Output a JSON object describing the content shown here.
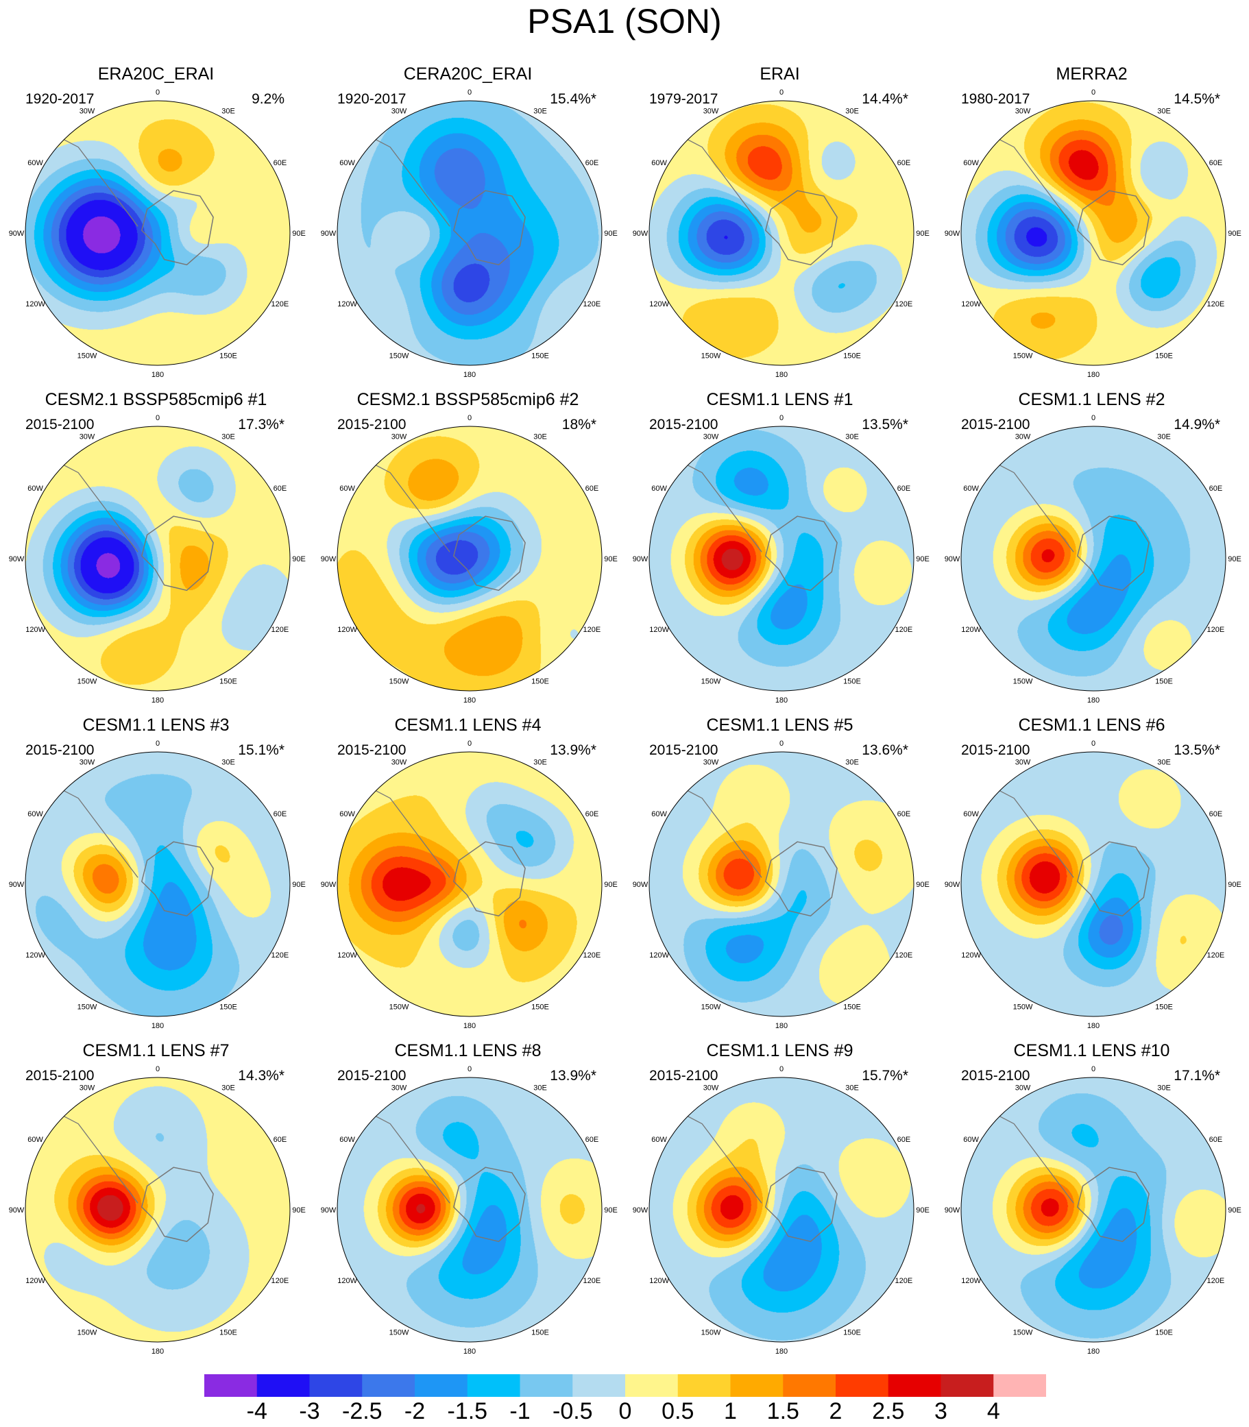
{
  "title": "PSA1 (SON)",
  "lon_labels": [
    "0",
    "30E",
    "60E",
    "90E",
    "120E",
    "150E",
    "180",
    "150W",
    "120W",
    "90W",
    "60W",
    "30W"
  ],
  "colorbar": {
    "colors": [
      "#8a2be2",
      "#1f0ff5",
      "#2e46e6",
      "#3c78eb",
      "#1e96f5",
      "#00c0fa",
      "#78c8f0",
      "#b4dcf0",
      "#fff58c",
      "#ffd22d",
      "#ffaa00",
      "#ff7800",
      "#ff3c00",
      "#e60000",
      "#c81e1e",
      "#ffb4b4"
    ],
    "labels": [
      "-4",
      "-3",
      "-2.5",
      "-2",
      "-1.5",
      "-1",
      "-0.5",
      "0",
      "0.5",
      "1",
      "1.5",
      "2",
      "2.5",
      "3",
      "4"
    ]
  },
  "panels": [
    {
      "title": "ERA20C_ERAI",
      "period": "1920-2017",
      "percent": "9.2%",
      "blobs": [
        [
          0.0,
          0.0,
          0.95,
          0.6
        ],
        [
          -0.42,
          0.01,
          0.32,
          -5
        ],
        [
          0.35,
          0.28,
          0.22,
          -1.3
        ],
        [
          0.25,
          -0.2,
          0.2,
          -0.8
        ],
        [
          0.05,
          -0.45,
          0.2,
          1.2
        ],
        [
          0.3,
          0.0,
          0.15,
          1.0
        ]
      ]
    },
    {
      "title": "CERA20C_ERAI",
      "period": "1920-2017",
      "percent": "15.4%*",
      "blobs": [
        [
          0.0,
          0.0,
          0.85,
          -0.8
        ],
        [
          -0.1,
          -0.5,
          0.25,
          -1.6
        ],
        [
          0.2,
          0.2,
          0.35,
          -1.2
        ],
        [
          -0.05,
          0.45,
          0.2,
          -1.3
        ],
        [
          -0.4,
          0.0,
          0.15,
          1.0
        ],
        [
          0.7,
          0.55,
          0.2,
          0.6
        ],
        [
          -0.5,
          0.5,
          0.2,
          0.3
        ]
      ]
    },
    {
      "title": "ERAI",
      "period": "1979-2017",
      "percent": "14.4%*",
      "blobs": [
        [
          0.0,
          0.0,
          0.95,
          0.5
        ],
        [
          -0.38,
          0.05,
          0.28,
          -4
        ],
        [
          -0.15,
          -0.5,
          0.22,
          2.2
        ],
        [
          0.1,
          0.05,
          0.28,
          1.3
        ],
        [
          0.35,
          0.38,
          0.22,
          -1.5
        ],
        [
          -0.4,
          0.5,
          0.25,
          1.2
        ],
        [
          0.35,
          -0.5,
          0.18,
          -0.8
        ],
        [
          0.65,
          0.3,
          0.2,
          -0.6
        ]
      ]
    },
    {
      "title": "MERRA2",
      "period": "1980-2017",
      "percent": "14.5%*",
      "blobs": [
        [
          0.0,
          0.0,
          0.95,
          0.5
        ],
        [
          -0.4,
          0.05,
          0.28,
          -4
        ],
        [
          -0.1,
          -0.5,
          0.22,
          2.6
        ],
        [
          0.15,
          0.0,
          0.25,
          1.3
        ],
        [
          0.45,
          0.35,
          0.2,
          -1.8
        ],
        [
          -0.4,
          0.5,
          0.25,
          1.3
        ],
        [
          0.45,
          -0.45,
          0.18,
          -1.0
        ],
        [
          0.65,
          0.1,
          0.2,
          -0.7
        ]
      ]
    },
    {
      "title": "CESM2.1 BSSP585cmip6 #1",
      "period": "2015-2100",
      "percent": "17.3%*",
      "blobs": [
        [
          0.0,
          0.0,
          0.95,
          0.6
        ],
        [
          -0.35,
          0.05,
          0.28,
          -5
        ],
        [
          0.25,
          -0.5,
          0.22,
          -1.4
        ],
        [
          0.2,
          0.1,
          0.25,
          1.5
        ],
        [
          0.6,
          0.3,
          0.3,
          -0.9
        ],
        [
          -0.2,
          0.6,
          0.2,
          0.8
        ],
        [
          0.0,
          -0.3,
          0.2,
          0.9
        ]
      ]
    },
    {
      "title": "CESM2.1 BSSP585cmip6 #2",
      "period": "2015-2100",
      "percent": "18%*",
      "blobs": [
        [
          0.0,
          0.0,
          0.95,
          0.6
        ],
        [
          -0.2,
          0.05,
          0.3,
          -3.5
        ],
        [
          0.1,
          -0.05,
          0.3,
          -1.3
        ],
        [
          0.1,
          0.5,
          0.3,
          1.5
        ],
        [
          -0.25,
          -0.5,
          0.2,
          1.6
        ],
        [
          -0.5,
          0.2,
          0.3,
          1.2
        ],
        [
          0.7,
          0.55,
          0.2,
          -0.5
        ]
      ]
    },
    {
      "title": "CESM1.1 LENS #1",
      "period": "2015-2100",
      "percent": "13.5%*",
      "blobs": [
        [
          0.0,
          0.0,
          0.95,
          -0.5
        ],
        [
          -0.35,
          0.0,
          0.22,
          4
        ],
        [
          -0.25,
          -0.55,
          0.22,
          -1.4
        ],
        [
          0.1,
          0.0,
          0.25,
          -0.9
        ],
        [
          0.0,
          0.4,
          0.2,
          -1.3
        ],
        [
          0.7,
          0.1,
          0.2,
          0.8
        ],
        [
          0.45,
          -0.5,
          0.15,
          0.8
        ]
      ]
    },
    {
      "title": "CESM1.1 LENS #2",
      "period": "2015-2100",
      "percent": "14.9%*",
      "blobs": [
        [
          0.0,
          0.0,
          0.95,
          -0.55
        ],
        [
          -0.3,
          0.0,
          0.22,
          4
        ],
        [
          0.05,
          0.0,
          0.3,
          -1.2
        ],
        [
          -0.1,
          0.35,
          0.25,
          -1.4
        ],
        [
          0.5,
          0.6,
          0.2,
          0.7
        ]
      ]
    },
    {
      "title": "CESM1.1 LENS #3",
      "period": "2015-2100",
      "percent": "15.1%*",
      "blobs": [
        [
          0.0,
          0.0,
          0.95,
          -0.7
        ],
        [
          -0.4,
          0.0,
          0.22,
          3.8
        ],
        [
          0.05,
          0.0,
          0.3,
          -1.3
        ],
        [
          -0.55,
          0.1,
          0.2,
          -1.4
        ],
        [
          0.4,
          -0.25,
          0.2,
          1.3
        ],
        [
          0.6,
          0.1,
          0.25,
          0.8
        ],
        [
          0.1,
          0.5,
          0.25,
          -1.0
        ]
      ]
    },
    {
      "title": "CESM1.1 LENS #4",
      "period": "2015-2100",
      "percent": "13.9%*",
      "blobs": [
        [
          0.0,
          0.0,
          0.95,
          0.7
        ],
        [
          0.0,
          0.35,
          0.2,
          -1.6
        ],
        [
          -0.55,
          0.0,
          0.22,
          2.2
        ],
        [
          0.45,
          -0.3,
          0.22,
          -1.5
        ],
        [
          0.15,
          -0.55,
          0.2,
          -0.8
        ],
        [
          0.35,
          0.3,
          0.18,
          1.2
        ],
        [
          -0.2,
          0.0,
          0.15,
          1.0
        ]
      ]
    },
    {
      "title": "CESM1.1 LENS #5",
      "period": "2015-2100",
      "percent": "13.6%*",
      "blobs": [
        [
          0.0,
          0.0,
          0.95,
          -0.3
        ],
        [
          -0.3,
          -0.05,
          0.2,
          3.2
        ],
        [
          -0.3,
          0.45,
          0.25,
          -1.5
        ],
        [
          0.1,
          0.0,
          0.25,
          -1.0
        ],
        [
          0.6,
          -0.2,
          0.25,
          0.9
        ],
        [
          -0.2,
          -0.6,
          0.2,
          0.6
        ],
        [
          0.5,
          0.6,
          0.2,
          0.6
        ]
      ]
    },
    {
      "title": "CESM1.1 LENS #6",
      "period": "2015-2100",
      "percent": "13.5%*",
      "blobs": [
        [
          0.0,
          0.0,
          0.95,
          -0.4
        ],
        [
          -0.35,
          -0.05,
          0.22,
          3.5
        ],
        [
          0.15,
          0.38,
          0.2,
          -1.8
        ],
        [
          0.1,
          0.0,
          0.25,
          -0.8
        ],
        [
          0.6,
          0.4,
          0.25,
          0.9
        ],
        [
          0.4,
          -0.6,
          0.2,
          0.6
        ]
      ]
    },
    {
      "title": "CESM1.1 LENS #7",
      "period": "2015-2100",
      "percent": "14.3%*",
      "blobs": [
        [
          0.0,
          0.0,
          0.95,
          0.4
        ],
        [
          -0.35,
          0.0,
          0.2,
          3.5
        ],
        [
          0.1,
          0.3,
          0.35,
          -1.2
        ],
        [
          0.0,
          -0.55,
          0.25,
          -0.8
        ],
        [
          -0.6,
          0.3,
          0.2,
          -0.6
        ]
      ]
    },
    {
      "title": "CESM1.1 LENS #8",
      "period": "2015-2100",
      "percent": "13.9%*",
      "blobs": [
        [
          0.0,
          0.0,
          0.95,
          -0.4
        ],
        [
          -0.35,
          0.0,
          0.2,
          3.8
        ],
        [
          0.0,
          0.35,
          0.3,
          -1.2
        ],
        [
          0.2,
          0.0,
          0.25,
          -0.9
        ],
        [
          0.7,
          0.0,
          0.25,
          1.0
        ],
        [
          -0.1,
          -0.55,
          0.2,
          -0.8
        ]
      ]
    },
    {
      "title": "CESM1.1 LENS #9",
      "period": "2015-2100",
      "percent": "15.7%*",
      "blobs": [
        [
          0.0,
          0.0,
          0.95,
          -0.5
        ],
        [
          -0.35,
          0.0,
          0.22,
          3.6
        ],
        [
          0.0,
          0.4,
          0.3,
          -1.4
        ],
        [
          0.15,
          0.0,
          0.25,
          -0.8
        ],
        [
          0.6,
          -0.2,
          0.25,
          0.9
        ],
        [
          -0.2,
          -0.55,
          0.2,
          0.8
        ]
      ]
    },
    {
      "title": "CESM1.1 LENS #10",
      "period": "2015-2100",
      "percent": "17.1%*",
      "blobs": [
        [
          0.0,
          0.0,
          0.95,
          -0.5
        ],
        [
          -0.3,
          0.0,
          0.22,
          3.6
        ],
        [
          0.0,
          0.38,
          0.3,
          -1.4
        ],
        [
          0.2,
          0.0,
          0.25,
          -0.8
        ],
        [
          0.75,
          0.1,
          0.2,
          0.9
        ],
        [
          -0.1,
          -0.55,
          0.2,
          -0.7
        ]
      ]
    }
  ]
}
